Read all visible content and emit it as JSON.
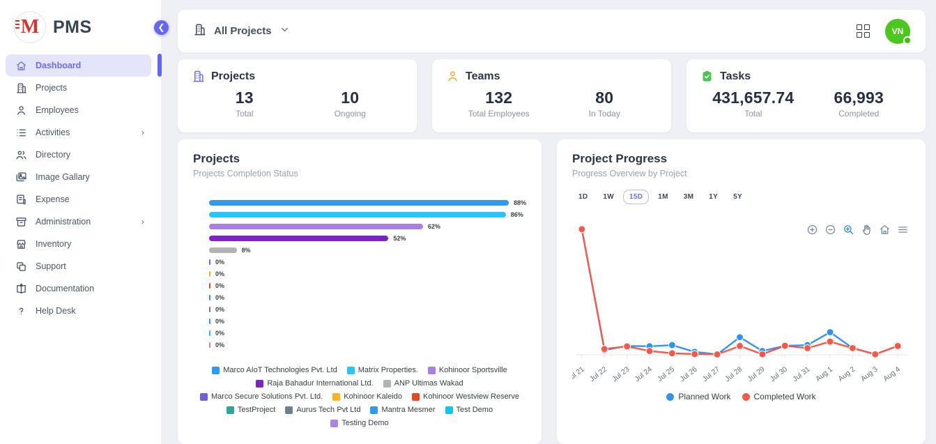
{
  "app": {
    "logo_text": "PMS"
  },
  "sidebar": {
    "items": [
      {
        "label": "Dashboard",
        "icon": "home-icon",
        "active": true,
        "expandable": false
      },
      {
        "label": "Projects",
        "icon": "building-icon",
        "active": false,
        "expandable": false
      },
      {
        "label": "Employees",
        "icon": "person-icon",
        "active": false,
        "expandable": false
      },
      {
        "label": "Activities",
        "icon": "list-icon",
        "active": false,
        "expandable": true
      },
      {
        "label": "Directory",
        "icon": "people-icon",
        "active": false,
        "expandable": false
      },
      {
        "label": "Image Gallary",
        "icon": "image-icon",
        "active": false,
        "expandable": false
      },
      {
        "label": "Expense",
        "icon": "receipt-icon",
        "active": false,
        "expandable": false
      },
      {
        "label": "Administration",
        "icon": "archive-icon",
        "active": false,
        "expandable": true
      },
      {
        "label": "Inventory",
        "icon": "store-icon",
        "active": false,
        "expandable": false
      },
      {
        "label": "Support",
        "icon": "copy-icon",
        "active": false,
        "expandable": false
      },
      {
        "label": "Documentation",
        "icon": "book-icon",
        "active": false,
        "expandable": false
      },
      {
        "label": "Help Desk",
        "icon": "question-icon",
        "active": false,
        "expandable": false
      }
    ]
  },
  "topbar": {
    "project_filter_label": "All Projects",
    "filter_icon": "building-icon",
    "grid_icon": "grid-apps-icon",
    "avatar_initials": "VN",
    "avatar_color": "#4cc71e"
  },
  "stats": [
    {
      "title": "Projects",
      "icon": "building-icon",
      "icon_color": "#696cf5",
      "metrics": [
        {
          "value": "13",
          "label": "Total"
        },
        {
          "value": "10",
          "label": "Ongoing"
        }
      ]
    },
    {
      "title": "Teams",
      "icon": "person-icon",
      "icon_color": "#f7a823",
      "metrics": [
        {
          "value": "132",
          "label": "Total Employees"
        },
        {
          "value": "80",
          "label": "In Today"
        }
      ]
    },
    {
      "title": "Tasks",
      "icon": "clipboard-check-icon",
      "icon_color": "#45c64e",
      "metrics": [
        {
          "value": "431,657.74",
          "label": "Total"
        },
        {
          "value": "66,993",
          "label": "Completed"
        }
      ]
    }
  ],
  "projects_chart": {
    "title": "Projects",
    "subtitle": "Projects Completion Status",
    "chart_data": {
      "type": "bar",
      "orientation": "horizontal",
      "value_unit": "%",
      "xlim": [
        0,
        100
      ],
      "categories": [
        "Marco AIoT Technologies Pvt. Ltd",
        "Matrix Properties.",
        "Kohinoor Sportsville",
        "Raja Bahadur International Ltd.",
        "ANP Ultimas Wakad",
        "Marco Secure Solutions Pvt. Ltd.",
        "Kohinoor Kaleido",
        "Kohinoor Westview Reserve",
        "TestProject",
        "Aurus Tech Pvt Ltd",
        "Mantra Mesmer",
        "Test Demo",
        "Testing Demo"
      ],
      "values": [
        88,
        86,
        62,
        52,
        8,
        0,
        0,
        0,
        0,
        0,
        0,
        0,
        0
      ],
      "colors": [
        "#2e9bf0",
        "#27c6f7",
        "#a97fe3",
        "#7d22c3",
        "#b3b3b3",
        "#6f62d8",
        "#ffb01f",
        "#e8471f",
        "#2aa79b",
        "#6e7f92",
        "#2e9bf0",
        "#0fc6ee",
        "#a887e0"
      ]
    }
  },
  "progress_chart": {
    "title": "Project Progress",
    "subtitle": "Progress Overview by Project",
    "ranges": [
      "1D",
      "1W",
      "15D",
      "1M",
      "3M",
      "1Y",
      "5Y"
    ],
    "selected_range": "15D",
    "toolbar_icons": [
      "zoom-in-icon",
      "zoom-out-icon",
      "selection-zoom-icon",
      "pan-icon",
      "home-icon",
      "menu-icon"
    ],
    "toolbar_active_icon": "selection-zoom-icon",
    "chart_data": {
      "type": "line",
      "x": [
        "Jul 21",
        "Jul 22",
        "Jul 23",
        "Jul 24",
        "Jul 25",
        "Jul 26",
        "Jul 27",
        "Jul 28",
        "Jul 29",
        "Jul 30",
        "Jul 31",
        "Aug 1",
        "Aug 2",
        "Aug 3",
        "Aug 4"
      ],
      "series": [
        {
          "name": "Planned Work",
          "color": "#2e93f5",
          "values": [
            100,
            3.7,
            7,
            6.8,
            7.7,
            2.3,
            0.3,
            14,
            3,
            7.2,
            7.7,
            18,
            5.3,
            0.4,
            7
          ]
        },
        {
          "name": "Completed Work",
          "color": "#fa5747",
          "values": [
            100,
            4.6,
            6.7,
            3,
            1.2,
            0.5,
            0.3,
            7,
            0.4,
            7.2,
            5.3,
            10.5,
            5.3,
            0.4,
            7
          ]
        }
      ],
      "ylim": [
        0,
        100
      ],
      "grid": false,
      "legend_position": "bottom"
    }
  }
}
